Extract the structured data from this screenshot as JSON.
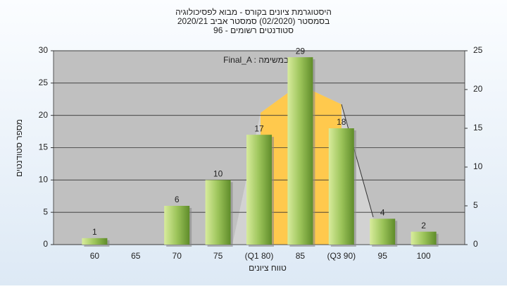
{
  "chart_data": {
    "type": "bar",
    "title": [
      "היסטוגרמת ציונים בקורס - מבוא לפסיכולוגיה",
      "בסמסטר (02/2020) סמסטר אביב 2020/21",
      "סטודנטים רשומים - 96"
    ],
    "annotation": "Final_A : במשימה",
    "x_label": "טווח ציונים",
    "y_label": "מספר סטודנטים",
    "categories": [
      "60",
      "65",
      "70",
      "75",
      "(Q1 80)",
      "85",
      "(Q3 90)",
      "95",
      "100"
    ],
    "values": [
      1,
      0,
      6,
      10,
      17,
      29,
      18,
      4,
      2
    ],
    "value_labels": [
      "1",
      null,
      "6",
      "10",
      "17",
      "29",
      "18",
      "4",
      "2"
    ],
    "ylim": [
      0,
      30
    ],
    "yticks": [
      0,
      5,
      10,
      15,
      20,
      25,
      30
    ],
    "y2lim": [
      0,
      25
    ],
    "y2ticks": [
      0,
      5,
      10,
      15,
      20,
      25
    ],
    "grid": true
  }
}
